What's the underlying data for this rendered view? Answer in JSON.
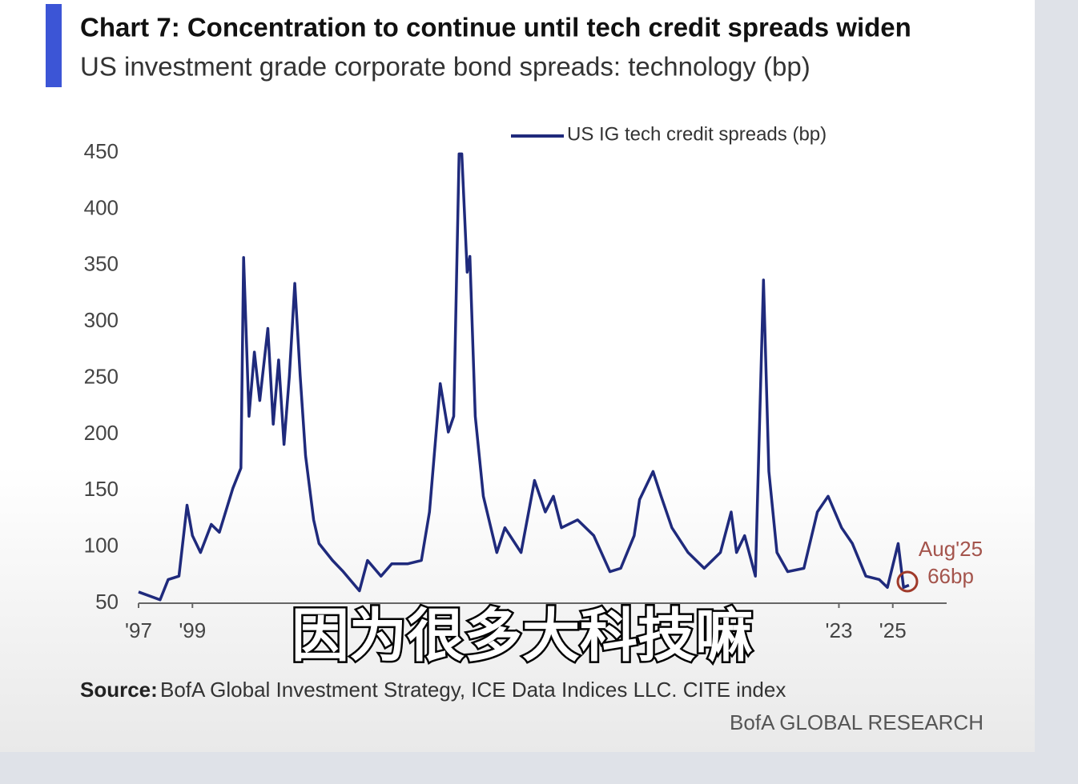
{
  "chart_data": {
    "type": "line",
    "title": "Chart 7: Concentration to continue until tech credit spreads widen",
    "subtitle": "US investment grade corporate bond spreads: technology (bp)",
    "x": [
      1997.0,
      1997.8,
      1998.1,
      1998.5,
      1998.8,
      1999.0,
      1999.3,
      1999.7,
      2000.0,
      2000.5,
      2000.8,
      2000.9,
      2001.1,
      2001.3,
      2001.5,
      2001.8,
      2002.0,
      2002.2,
      2002.4,
      2002.6,
      2002.8,
      2003.0,
      2003.2,
      2003.5,
      2003.7,
      2004.2,
      2004.6,
      2005.2,
      2005.5,
      2006.0,
      2006.4,
      2007.0,
      2007.5,
      2007.8,
      2008.2,
      2008.5,
      2008.7,
      2008.9,
      2009.0,
      2009.2,
      2009.3,
      2009.5,
      2009.8,
      2010.3,
      2010.6,
      2011.2,
      2011.7,
      2012.1,
      2012.4,
      2012.7,
      2013.3,
      2013.9,
      2014.5,
      2014.9,
      2015.4,
      2015.6,
      2016.1,
      2016.4,
      2016.8,
      2017.4,
      2018.0,
      2018.6,
      2019.0,
      2019.2,
      2019.5,
      2019.9,
      2020.2,
      2020.4,
      2020.7,
      2021.1,
      2021.7,
      2022.2,
      2022.6,
      2023.1,
      2023.5,
      2024.0,
      2024.5,
      2024.8,
      2025.2,
      2025.4,
      2025.6
    ],
    "series": [
      {
        "name": "US IG tech credit spreads (bp)",
        "color": "#1f2a7c",
        "values": [
          60,
          53,
          71,
          74,
          137,
          110,
          95,
          120,
          113,
          152,
          170,
          357,
          216,
          273,
          230,
          294,
          209,
          266,
          191,
          252,
          334,
          252,
          181,
          124,
          103,
          88,
          78,
          61,
          88,
          74,
          85,
          85,
          88,
          131,
          245,
          202,
          216,
          449,
          449,
          344,
          358,
          216,
          145,
          95,
          117,
          95,
          159,
          131,
          145,
          117,
          124,
          110,
          78,
          81,
          110,
          142,
          167,
          145,
          117,
          95,
          81,
          95,
          131,
          95,
          110,
          74,
          337,
          167,
          95,
          78,
          81,
          131,
          145,
          117,
          103,
          74,
          71,
          64,
          103,
          64,
          66
        ]
      }
    ],
    "xlim": [
      1997,
      2027
    ],
    "xticks": [
      {
        "value": 1997,
        "label": "'97"
      },
      {
        "value": 1999,
        "label": "'99"
      },
      {
        "value": 2023,
        "label": "'23"
      },
      {
        "value": 2025,
        "label": "'25"
      }
    ],
    "ylim": [
      50,
      450
    ],
    "yticks": [
      50,
      100,
      150,
      200,
      250,
      300,
      350,
      400,
      450
    ],
    "annotations": [
      "Aug'25",
      "66bp"
    ],
    "source_label": "Source:",
    "source": "BofA Global Investment Strategy, ICE Data Indices LLC. CITE index",
    "branding": "BofA GLOBAL RESEARCH"
  },
  "overlay_caption": "因为很多大科技嘛"
}
